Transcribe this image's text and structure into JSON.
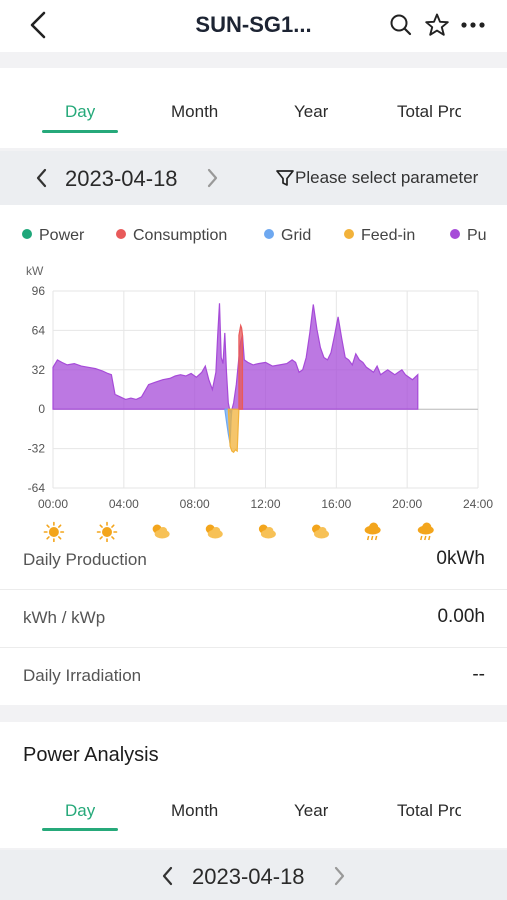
{
  "header": {
    "title": "SUN-SG1..."
  },
  "tabs": [
    "Day",
    "Month",
    "Year",
    "Total Pro"
  ],
  "date_nav": {
    "date": "2023-04-18",
    "filter_label": "Please select parameter"
  },
  "legend": [
    {
      "name": "Power",
      "color": "#1fa77a"
    },
    {
      "name": "Consumption",
      "color": "#e85a5a"
    },
    {
      "name": "Grid",
      "color": "#6ea8f0"
    },
    {
      "name": "Feed-in",
      "color": "#f2b23a"
    },
    {
      "name": "Pu",
      "color": "#a64bd8"
    }
  ],
  "chart_data": {
    "type": "area",
    "ylabel": "kW",
    "ylim": [
      -64,
      96
    ],
    "yticks": [
      "96",
      "64",
      "32",
      "0",
      "-32",
      "-64"
    ],
    "xlim": [
      0,
      24
    ],
    "xticks": [
      "00:00",
      "04:00",
      "08:00",
      "12:00",
      "16:00",
      "20:00",
      "24:00"
    ],
    "series": [
      {
        "name": "Pu",
        "color": "#a64bd8",
        "x": [
          0.0,
          0.25,
          0.5,
          0.8,
          1.2,
          1.6,
          2.0,
          2.4,
          2.8,
          3.1,
          3.3,
          3.5,
          3.8,
          4.1,
          4.4,
          4.7,
          5.0,
          5.4,
          5.8,
          6.2,
          6.6,
          6.9,
          7.2,
          7.5,
          7.8,
          8.1,
          8.4,
          8.6,
          8.8,
          9.0,
          9.2,
          9.3,
          9.4,
          9.5,
          9.6,
          9.7,
          9.8,
          9.9,
          10.0,
          10.05,
          10.2,
          10.35,
          10.5,
          10.6,
          10.7,
          10.8,
          11.0,
          11.3,
          11.6,
          12.0,
          12.4,
          12.8,
          13.2,
          13.5,
          13.7,
          13.9,
          14.1,
          14.3,
          14.5,
          14.7,
          14.9,
          15.1,
          15.3,
          15.5,
          15.7,
          15.9,
          16.1,
          16.3,
          16.5,
          16.7,
          16.9,
          17.1,
          17.3,
          17.5,
          17.7,
          17.9,
          18.1,
          18.3,
          18.5,
          18.7,
          18.9,
          19.1,
          19.3,
          19.5,
          19.7,
          19.9,
          20.1,
          20.3,
          20.6
        ],
        "y": [
          34,
          40,
          38,
          36,
          37,
          35,
          34,
          33,
          31,
          29,
          28,
          12,
          10,
          8,
          9,
          8,
          10,
          20,
          22,
          24,
          25,
          27,
          28,
          27,
          29,
          26,
          30,
          35,
          24,
          16,
          30,
          60,
          86,
          42,
          37,
          62,
          30,
          5,
          -2,
          -3,
          5,
          20,
          42,
          55,
          60,
          40,
          38,
          36,
          37,
          38,
          35,
          36,
          37,
          40,
          38,
          30,
          32,
          42,
          62,
          85,
          65,
          50,
          42,
          40,
          46,
          60,
          75,
          58,
          42,
          40,
          36,
          45,
          40,
          38,
          34,
          32,
          30,
          35,
          28,
          30,
          32,
          30,
          28,
          30,
          32,
          28,
          26,
          24,
          28
        ]
      },
      {
        "name": "Grid",
        "color": "#6ea8f0",
        "x": [
          9.7,
          9.8,
          9.9,
          10.0,
          10.05,
          10.1
        ],
        "y": [
          0,
          -10,
          -20,
          -28,
          -10,
          0
        ]
      },
      {
        "name": "Feed-in",
        "color": "#f2b23a",
        "x": [
          9.9,
          10.0,
          10.1,
          10.2,
          10.3,
          10.4,
          10.5
        ],
        "y": [
          0,
          -30,
          -34,
          -35,
          -33,
          -34,
          0
        ]
      },
      {
        "name": "Consumption",
        "color": "#e85a5a",
        "x": [
          10.5,
          10.6,
          10.65,
          10.7
        ],
        "y": [
          60,
          68,
          66,
          60
        ]
      }
    ]
  },
  "weather": [
    "sunny",
    "sunny",
    "partly-cloudy",
    "partly-cloudy",
    "partly-cloudy",
    "partly-cloudy",
    "rainy",
    "rainy"
  ],
  "stats": [
    {
      "label": "Daily Production",
      "value": "0kWh"
    },
    {
      "label": "kWh / kWp",
      "value": "0.00h"
    },
    {
      "label": "Daily Irradiation",
      "value": "--"
    }
  ],
  "power_analysis": {
    "title": "Power Analysis",
    "date": "2023-04-18"
  }
}
